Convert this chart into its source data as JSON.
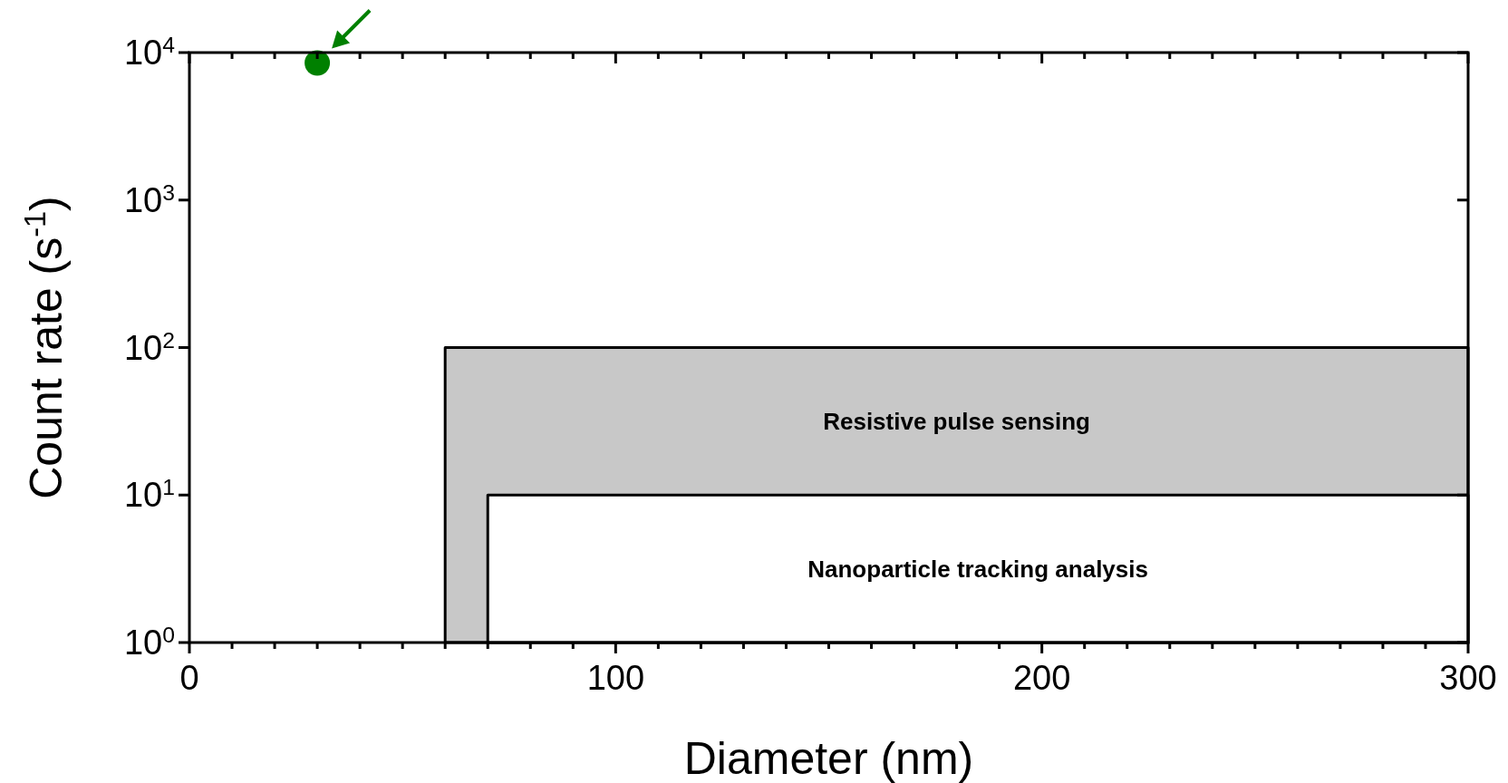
{
  "chart_data": {
    "type": "area",
    "xlabel": "Diameter (nm)",
    "ylabel": "Count rate (s$^{-1}$)",
    "log": "y",
    "xlim": [
      0,
      300
    ],
    "ylim": [
      1,
      10000
    ],
    "xticks": [
      0,
      {
        "value": 10,
        "label": null
      },
      {
        "value": 20,
        "label": null
      },
      {
        "value": 30,
        "label": null
      },
      {
        "value": 40,
        "label": null
      },
      {
        "value": 50,
        "label": null
      },
      {
        "value": 60,
        "label": null
      },
      {
        "value": 70,
        "label": null
      },
      {
        "value": 80,
        "label": null
      },
      {
        "value": 90,
        "label": null
      },
      100,
      {
        "value": 110,
        "label": null
      },
      {
        "value": 120,
        "label": null
      },
      {
        "value": 130,
        "label": null
      },
      {
        "value": 140,
        "label": null
      },
      {
        "value": 150,
        "label": null
      },
      {
        "value": 160,
        "label": null
      },
      {
        "value": 170,
        "label": null
      },
      {
        "value": 180,
        "label": null
      },
      {
        "value": 190,
        "label": null
      },
      200,
      {
        "value": 210,
        "label": null
      },
      {
        "value": 220,
        "label": null
      },
      {
        "value": 230,
        "label": null
      },
      {
        "value": 240,
        "label": null
      },
      {
        "value": 250,
        "label": null
      },
      {
        "value": 260,
        "label": null
      },
      {
        "value": 270,
        "label": null
      },
      {
        "value": 280,
        "label": null
      },
      {
        "value": 290,
        "label": null
      },
      300
    ],
    "yticks": [
      {
        "value": 1,
        "label": "10$^{0}$"
      },
      {
        "value": 10,
        "label": "10$^{1}$"
      },
      {
        "value": 100,
        "label": "10$^{2}$"
      },
      {
        "value": 1000,
        "label": "10$^{3}$"
      },
      {
        "value": 10000,
        "label": "10$^{4}$"
      }
    ],
    "series": [
      {
        "name": "Resistive pulse sensing",
        "color": "#c8c8c8",
        "x": [
          60,
          300
        ],
        "values": [
          100,
          100
        ]
      },
      {
        "name": "Nanoparticle tracking analysis",
        "color": "#ffffff",
        "x": [
          70,
          300
        ],
        "values": [
          10,
          10
        ]
      },
      {
        "type": "scatter",
        "color": "#008000",
        "x": [
          30
        ],
        "values": [
          8500
        ],
        "marker": "circle"
      }
    ]
  }
}
